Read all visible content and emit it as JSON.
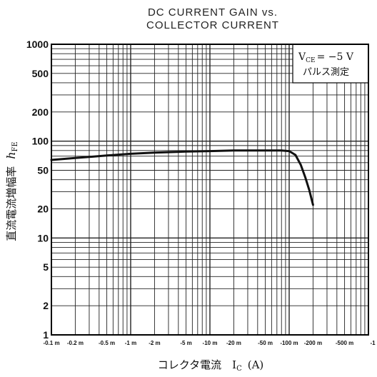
{
  "chart_data": {
    "type": "line",
    "title": [
      "DC CURRENT GAIN vs.",
      "COLLECTOR CURRENT"
    ],
    "xlabel": "コレクタ電流　I",
    "xlabel_sub": "C",
    "xlabel_unit": "(A)",
    "ylabel": "直流電流増幅率",
    "ylabel_symbol": "h",
    "ylabel_sub": "FE",
    "x_scale": "log",
    "y_scale": "log",
    "xlim": [
      0.0001,
      1
    ],
    "ylim": [
      1,
      1000
    ],
    "grid": true,
    "x_ticks": [
      {
        "value": 0.0001,
        "label": "-0.1 m"
      },
      {
        "value": 0.0002,
        "label": "-0.2 m"
      },
      {
        "value": 0.0005,
        "label": "-0.5 m"
      },
      {
        "value": 0.001,
        "label": "-1 m"
      },
      {
        "value": 0.002,
        "label": "-2 m"
      },
      {
        "value": 0.005,
        "label": "-5 m"
      },
      {
        "value": 0.01,
        "label": "-10 m"
      },
      {
        "value": 0.02,
        "label": "-20 m"
      },
      {
        "value": 0.05,
        "label": "-50 m"
      },
      {
        "value": 0.1,
        "label": "-100 m"
      },
      {
        "value": 0.2,
        "label": "-200 m"
      },
      {
        "value": 0.5,
        "label": "-500 m"
      },
      {
        "value": 1,
        "label": "-1"
      }
    ],
    "y_ticks": [
      {
        "value": 1,
        "label": "1"
      },
      {
        "value": 2,
        "label": "2"
      },
      {
        "value": 5,
        "label": "5"
      },
      {
        "value": 10,
        "label": "10"
      },
      {
        "value": 20,
        "label": "20"
      },
      {
        "value": 50,
        "label": "50"
      },
      {
        "value": 100,
        "label": "100"
      },
      {
        "value": 200,
        "label": "200"
      },
      {
        "value": 500,
        "label": "500"
      },
      {
        "value": 1000,
        "label": "1000"
      }
    ],
    "legend": {
      "position": "top-right",
      "line1_prefix": "V",
      "line1_sub": "CE",
      "line1_rest": "= −5  V",
      "line2": "パルス測定"
    },
    "series": [
      {
        "x": [
          0.0001,
          0.0002,
          0.0005,
          0.001,
          0.002,
          0.005,
          0.01,
          0.02,
          0.05,
          0.08,
          0.1,
          0.12,
          0.14,
          0.16,
          0.18,
          0.2
        ],
        "y": [
          64,
          67,
          71,
          74,
          76,
          78,
          79,
          80,
          80,
          80,
          79,
          72,
          57,
          42,
          31,
          22
        ]
      }
    ]
  },
  "colors": {
    "line": "#111111",
    "grid": "#222222",
    "frame": "#000000",
    "background": "#ffffff"
  }
}
